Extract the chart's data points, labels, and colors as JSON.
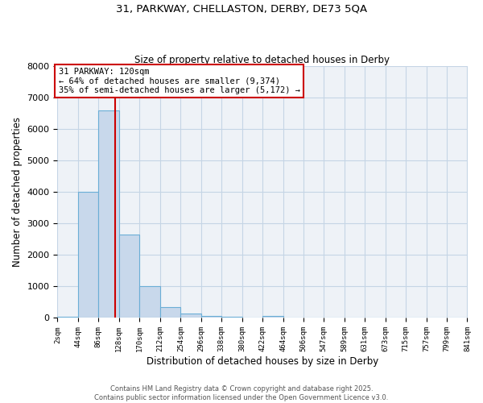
{
  "title1": "31, PARKWAY, CHELLASTON, DERBY, DE73 5QA",
  "title2": "Size of property relative to detached houses in Derby",
  "xlabel": "Distribution of detached houses by size in Derby",
  "ylabel": "Number of detached properties",
  "bin_edges": [
    2,
    44,
    86,
    128,
    170,
    212,
    254,
    296,
    338,
    380,
    422,
    464,
    506,
    547,
    589,
    631,
    673,
    715,
    757,
    799,
    841
  ],
  "bin_counts": [
    50,
    4000,
    6600,
    2650,
    1000,
    350,
    130,
    70,
    50,
    0,
    60,
    0,
    0,
    0,
    0,
    0,
    0,
    0,
    0,
    0
  ],
  "bar_color": "#c8d8eb",
  "bar_edge_color": "#6baed6",
  "property_size": 120,
  "vline_color": "#cc0000",
  "annotation_line1": "31 PARKWAY: 120sqm",
  "annotation_line2": "← 64% of detached houses are smaller (9,374)",
  "annotation_line3": "35% of semi-detached houses are larger (5,172) →",
  "annotation_box_color": "#cc0000",
  "ylim": [
    0,
    8000
  ],
  "grid_color": "#c5d5e5",
  "background_color": "#eef2f7",
  "footer_text": "Contains HM Land Registry data © Crown copyright and database right 2025.\nContains public sector information licensed under the Open Government Licence v3.0.",
  "tick_labels": [
    "2sqm",
    "44sqm",
    "86sqm",
    "128sqm",
    "170sqm",
    "212sqm",
    "254sqm",
    "296sqm",
    "338sqm",
    "380sqm",
    "422sqm",
    "464sqm",
    "506sqm",
    "547sqm",
    "589sqm",
    "631sqm",
    "673sqm",
    "715sqm",
    "757sqm",
    "799sqm",
    "841sqm"
  ]
}
